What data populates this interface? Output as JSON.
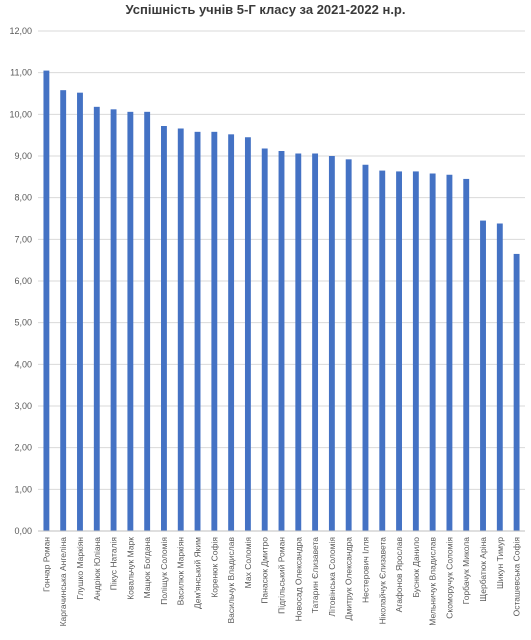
{
  "chart_data": {
    "type": "bar",
    "title": "Успішність учнів 5-Г класу за 2021-2022 н.р.",
    "xlabel": "",
    "ylabel": "",
    "ylim": [
      0,
      12
    ],
    "yticks": [
      "0,00",
      "1,00",
      "2,00",
      "3,00",
      "4,00",
      "5,00",
      "6,00",
      "7,00",
      "8,00",
      "9,00",
      "10,00",
      "11,00",
      "12,00"
    ],
    "grid": true,
    "bar_color": "#4472c4",
    "categories": [
      "Гончар Роман",
      "Каргачинська Ангеліна",
      "Глушко Маркіян",
      "Андріюк Юліана",
      "Пікус Наталія",
      "Ковальчук Марк",
      "Мацюк Богдана",
      "Поліщук Соломія",
      "Василюк Маркіян",
      "Дем'янський Яким",
      "Коренюк Софія",
      "Васильчук Владислав",
      "Мах Соломія",
      "Панасюк Дмитро",
      "Підгільський Роман",
      "Новосад Олександра",
      "Татарин Єлизавета",
      "Літовінська Соломія",
      "Дмитрук Олександра",
      "Нестерович Ілля",
      "Ніколайчук Єлизавета",
      "Агафонов Ярослав",
      "Буснюк Данило",
      "Мельничук Владислав",
      "Скоморучук Соломія",
      "Горбачук Микола",
      "Щербатюк Аріна",
      "Шикун Тимур",
      "Осташевська Софія"
    ],
    "values": [
      11.05,
      10.58,
      10.52,
      10.18,
      10.12,
      10.06,
      10.06,
      9.72,
      9.66,
      9.58,
      9.58,
      9.52,
      9.45,
      9.18,
      9.12,
      9.06,
      9.06,
      9.0,
      8.92,
      8.79,
      8.65,
      8.63,
      8.63,
      8.58,
      8.55,
      8.45,
      7.45,
      7.38,
      6.65
    ]
  }
}
